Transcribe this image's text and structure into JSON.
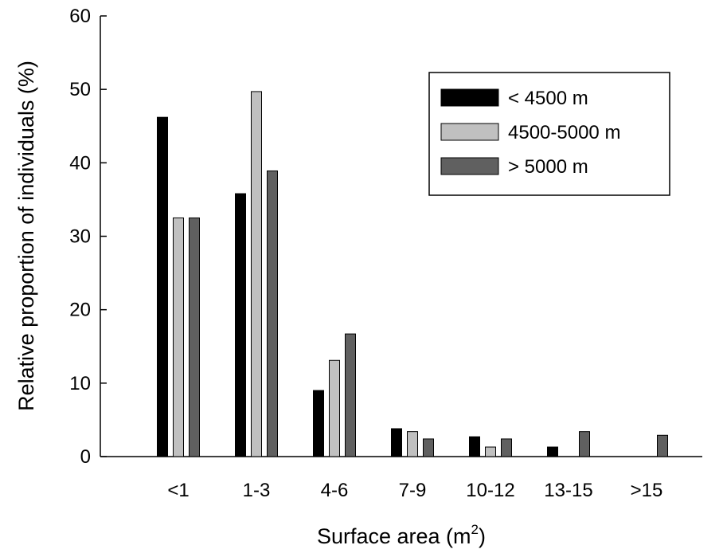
{
  "chart_data": {
    "type": "bar",
    "categories": [
      "<1",
      "1-3",
      "4-6",
      "7-9",
      "10-12",
      "13-15",
      ">15"
    ],
    "series": [
      {
        "name": "< 4500 m",
        "color": "#000000",
        "values": [
          46.2,
          35.8,
          9.0,
          3.8,
          2.7,
          1.3,
          0
        ]
      },
      {
        "name": "4500-5000 m",
        "color": "#c0c0c0",
        "values": [
          32.5,
          49.7,
          13.1,
          3.4,
          1.3,
          0,
          0
        ]
      },
      {
        "name": "> 5000 m",
        "color": "#606060",
        "values": [
          32.5,
          38.9,
          16.7,
          2.4,
          2.4,
          3.4,
          2.9
        ]
      }
    ],
    "ylim": [
      0,
      60
    ],
    "yticks": [
      0,
      10,
      20,
      30,
      40,
      50,
      60
    ],
    "ylabel": "Relative proportion of individuals (%)",
    "xlabel": {
      "main": "Surface area (m",
      "superscript": "2",
      "close": ")"
    },
    "legend_position": "top-right",
    "grid": false
  }
}
